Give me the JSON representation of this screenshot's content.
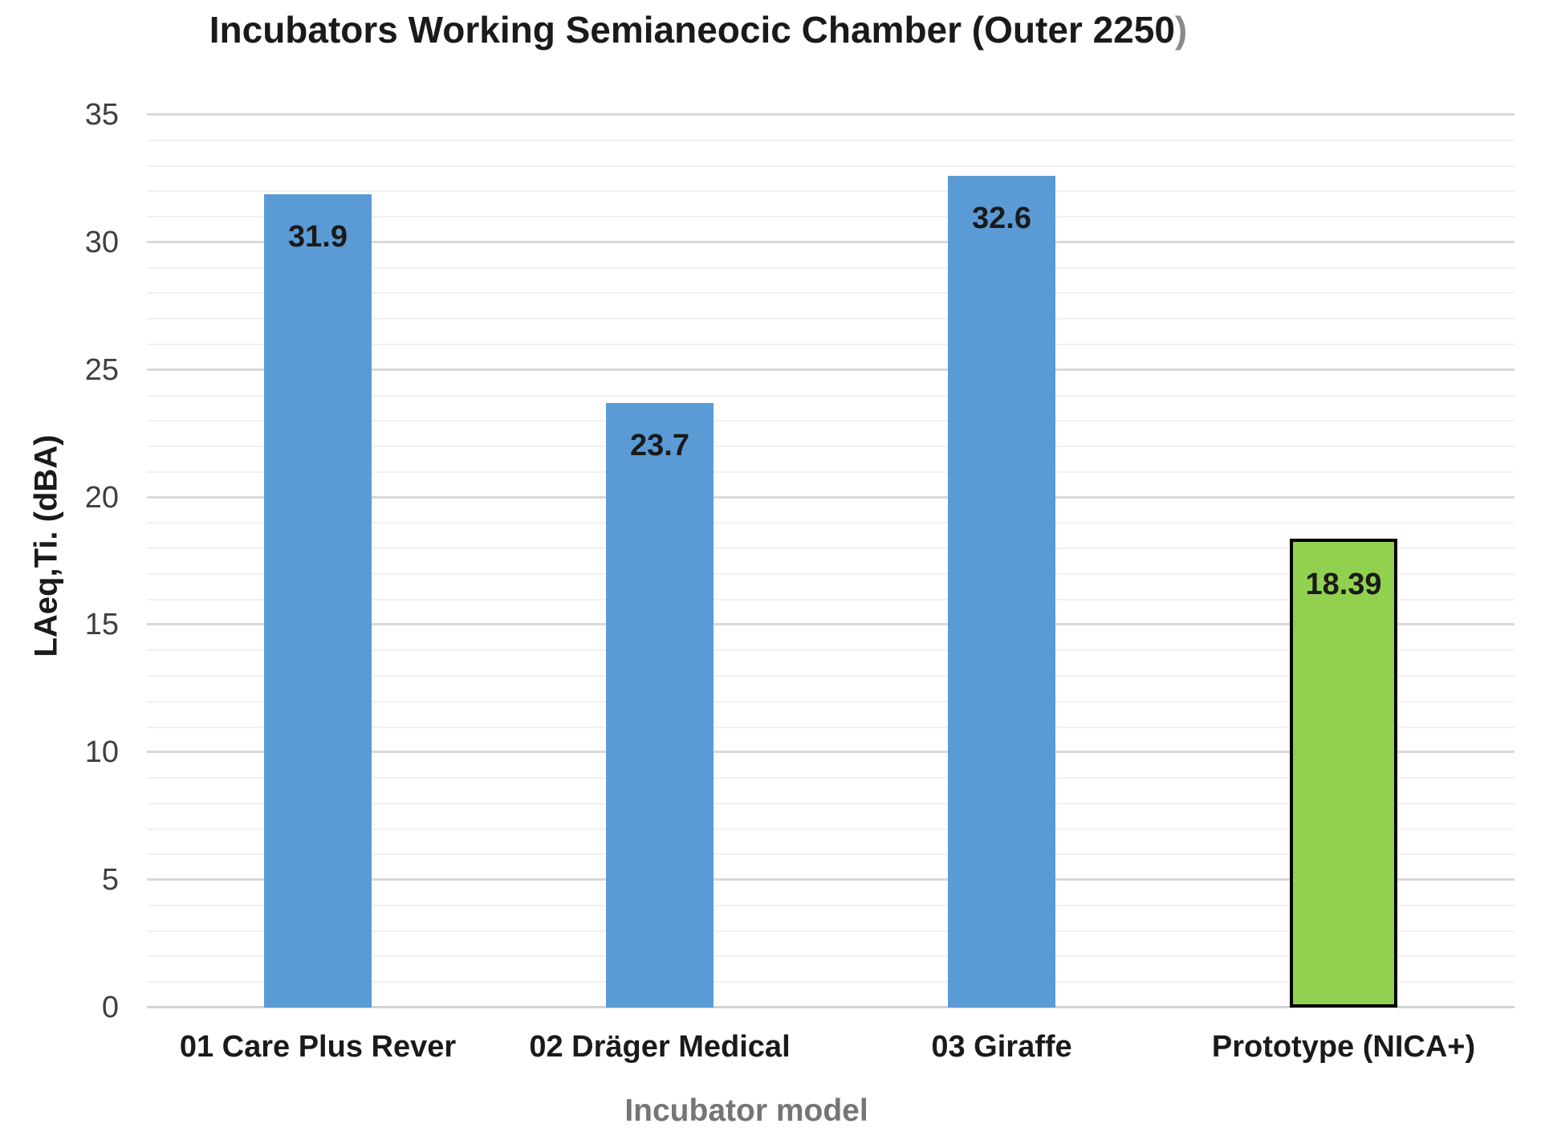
{
  "title": {
    "main": "Incubators Working Semianeocic Chamber (Outer 2250",
    "suffix": ")"
  },
  "chart_data": {
    "type": "bar",
    "title": "Incubators Working Semianeocic Chamber (Outer 2250)",
    "categories": [
      "01 Care Plus Rever",
      "02 Dräger Medical",
      "03 Giraffe",
      "Prototype (NICA+)"
    ],
    "values": [
      31.9,
      23.7,
      32.6,
      18.39
    ],
    "value_labels": [
      "31.9",
      "23.7",
      "32.6",
      "18.39"
    ],
    "bar_colors": [
      "#5B9BD5",
      "#5B9BD5",
      "#5B9BD5",
      "#92D050"
    ],
    "bar_borders": [
      "none",
      "none",
      "none",
      "#000000"
    ],
    "xlabel": "Incubator model",
    "ylabel": "LAeq,Ti. (dBA)",
    "ylim": [
      0,
      35
    ],
    "ytick_step": 5,
    "minor_grid_step": 1,
    "yticks": [
      0,
      5,
      10,
      15,
      20,
      25,
      30,
      35
    ],
    "grid": true,
    "legend_position": "none",
    "colors": {
      "major_gridline": "#d9d9d9",
      "minor_gridline": "#f1f1f1",
      "tick_label": "#3f3f3f",
      "x_axis_title": "#757575",
      "title_suffix_gray": "#8a8a8a"
    }
  }
}
